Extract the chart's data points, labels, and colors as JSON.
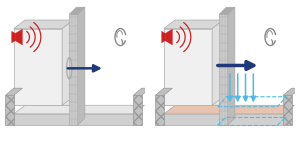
{
  "figsize": [
    3.0,
    1.48
  ],
  "dpi": 100,
  "bg_color": "#ffffff",
  "wall_face_color": "#f0f0f0",
  "wall_side_color": "#e0e0e0",
  "wall_top_color": "#d8d8d8",
  "wall_edge": "#aaaaaa",
  "floor_top_color": "#e8e8e8",
  "floor_side_color": "#d0d0d0",
  "floor_edge": "#aaaaaa",
  "hatch_color": "#c0c0c0",
  "hatch_edge": "#999999",
  "sep_wall_face": "#cccccc",
  "sep_wall_side": "#bbbbbb",
  "sep_wall_top_hatch": "#aaaaaa",
  "arrow_direct": "#1e3a7a",
  "arrow_indirect_fill": "#1e3a7a",
  "indirect_color": "#55b8e0",
  "pink_floor": "#e8c4b0",
  "speaker_color": "#cc2222",
  "ear_color": "#888888",
  "vibration_color": "#aaaaaa"
}
